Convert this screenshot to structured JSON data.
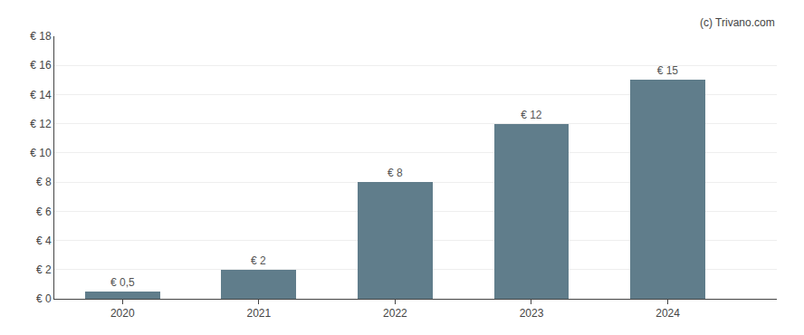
{
  "chart_data": {
    "type": "bar",
    "x": [
      2020,
      2021,
      2022,
      2023,
      2024
    ],
    "values": [
      0.5,
      2,
      8,
      12,
      15
    ],
    "value_labels": [
      "€ 0,5",
      "€ 2",
      "€ 8",
      "€ 12",
      "€ 15"
    ],
    "data_labels": true,
    "color": "#607d8b",
    "xlim": [
      2019.5,
      2024.8
    ],
    "xticks": [
      2020,
      2021,
      2022,
      2023,
      2024
    ],
    "ylim": [
      0,
      18
    ],
    "yticks": [
      {
        "value": 0,
        "label": "€ 0"
      },
      {
        "value": 2,
        "label": "€ 2"
      },
      {
        "value": 4,
        "label": "€ 4"
      },
      {
        "value": 6,
        "label": "€ 6"
      },
      {
        "value": 8,
        "label": "€ 8"
      },
      {
        "value": 10,
        "label": "€ 10"
      },
      {
        "value": 12,
        "label": "€ 12"
      },
      {
        "value": 14,
        "label": "€ 14"
      },
      {
        "value": 16,
        "label": "€ 16"
      },
      {
        "value": 18,
        "label": "€ 18"
      }
    ],
    "grid": true,
    "annotations": [
      "(c) Trivano.com"
    ]
  }
}
